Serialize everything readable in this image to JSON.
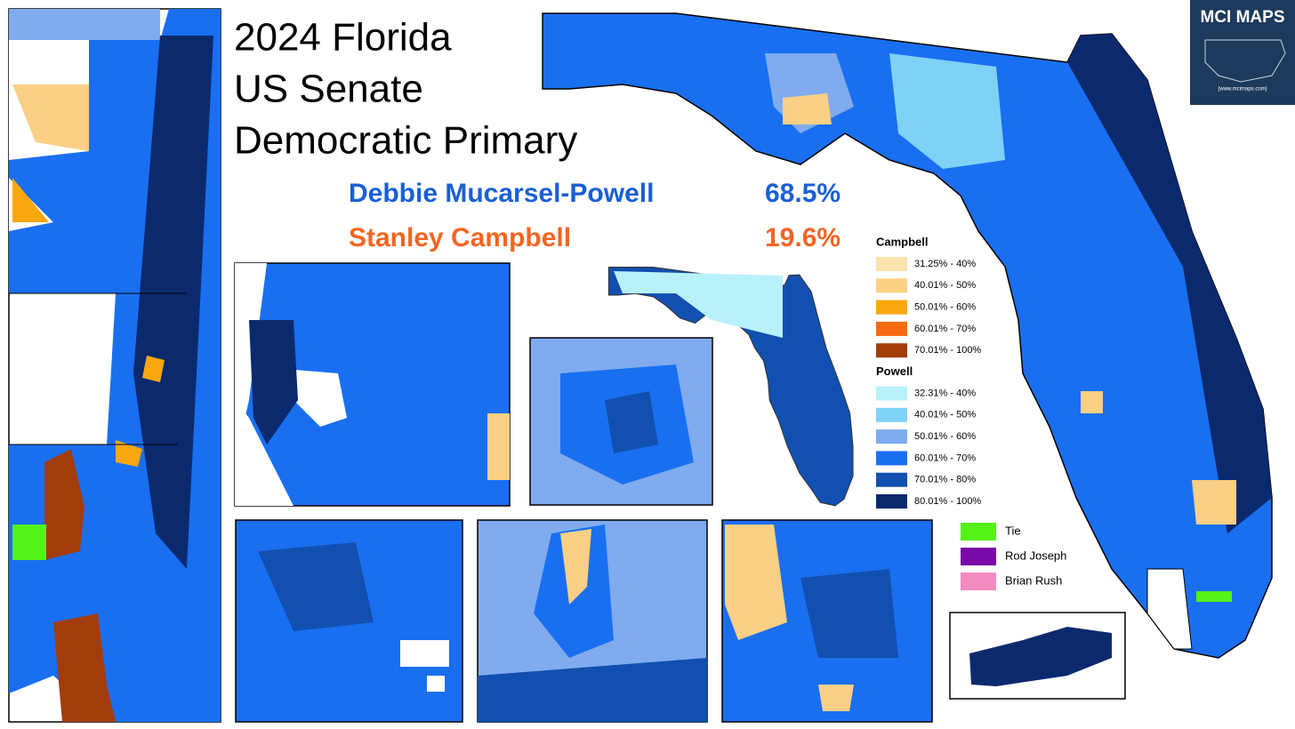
{
  "title": [
    "2024 Florida",
    "US Senate",
    "Democratic Primary"
  ],
  "results": [
    {
      "name": "Debbie Mucarsel-Powell",
      "share": "68.5%",
      "color": "#1a5fd6"
    },
    {
      "name": "Stanley Campbell",
      "share": "19.6%",
      "color": "#f26522"
    }
  ],
  "legend": {
    "groups": [
      {
        "name": "Campbell",
        "items": [
          {
            "label": "31.25% - 40%",
            "color": "#fde3b0"
          },
          {
            "label": "40.01% - 50%",
            "color": "#fbcf85"
          },
          {
            "label": "50.01% - 60%",
            "color": "#f9a70e"
          },
          {
            "label": "60.01% - 70%",
            "color": "#f86a10"
          },
          {
            "label": "70.01% - 100%",
            "color": "#a33c0b"
          }
        ]
      },
      {
        "name": "Powell",
        "items": [
          {
            "label": "32.31% - 40%",
            "color": "#b9f1fb"
          },
          {
            "label": "40.01% - 50%",
            "color": "#7fd2f5"
          },
          {
            "label": "50.01% - 60%",
            "color": "#80abee"
          },
          {
            "label": "60.01% - 70%",
            "color": "#1a6ff0"
          },
          {
            "label": "70.01% - 80%",
            "color": "#1150b0"
          },
          {
            "label": "80.01% - 100%",
            "color": "#0b2a6e"
          }
        ]
      }
    ],
    "others": [
      {
        "label": "Tie",
        "color": "#55f21a"
      },
      {
        "label": "Rod Joseph",
        "color": "#7a0aa8"
      },
      {
        "label": "Brian Rush",
        "color": "#f48bc0"
      }
    ]
  },
  "logo": {
    "title": "MCI MAPS",
    "url": "{www.mcimaps.com}"
  }
}
